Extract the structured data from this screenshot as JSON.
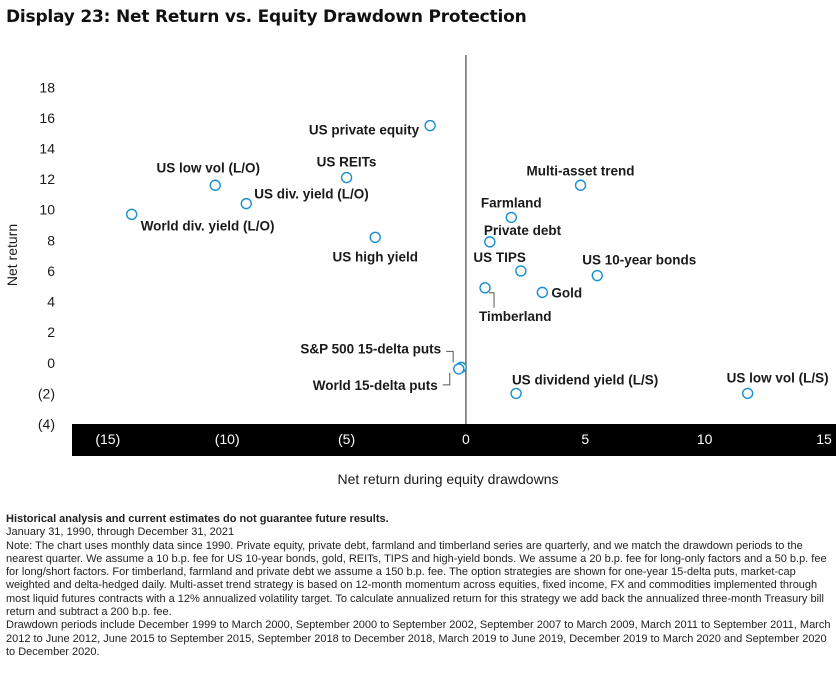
{
  "title": "Display 23: Net Return vs. Equity Drawdown Protection",
  "chart_data": {
    "type": "scatter",
    "xlabel": "Net return during equity drawdowns",
    "ylabel": "Net return",
    "xlim": [
      -16.5,
      15.5
    ],
    "ylim": [
      -4,
      19
    ],
    "xticks": [
      {
        "value": -15,
        "label": "(15)"
      },
      {
        "value": -10,
        "label": "(10)"
      },
      {
        "value": -5,
        "label": "(5)"
      },
      {
        "value": 0,
        "label": "0"
      },
      {
        "value": 5,
        "label": "5"
      },
      {
        "value": 10,
        "label": "10"
      },
      {
        "value": 15,
        "label": "15"
      }
    ],
    "yticks": [
      {
        "value": 18,
        "label": "18"
      },
      {
        "value": 16,
        "label": "16"
      },
      {
        "value": 14,
        "label": "14"
      },
      {
        "value": 12,
        "label": "12"
      },
      {
        "value": 10,
        "label": "10"
      },
      {
        "value": 8,
        "label": "8"
      },
      {
        "value": 6,
        "label": "6"
      },
      {
        "value": 4,
        "label": "4"
      },
      {
        "value": 2,
        "label": "2"
      },
      {
        "value": 0,
        "label": "0"
      },
      {
        "value": -2,
        "label": "(2)"
      },
      {
        "value": -4,
        "label": "(4)"
      }
    ],
    "points": [
      {
        "label": "US private equity",
        "x": -1.5,
        "y": 15.5
      },
      {
        "label": "US low vol (L/O)",
        "x": -10.5,
        "y": 11.6
      },
      {
        "label": "US REITs",
        "x": -5.0,
        "y": 12.1
      },
      {
        "label": "US div. yield (L/O)",
        "x": -9.2,
        "y": 10.4
      },
      {
        "label": "World div. yield (L/O)",
        "x": -14.0,
        "y": 9.7
      },
      {
        "label": "US high yield",
        "x": -3.8,
        "y": 8.2
      },
      {
        "label": "Multi-asset trend",
        "x": 4.8,
        "y": 11.6
      },
      {
        "label": "Farmland",
        "x": 1.9,
        "y": 9.5
      },
      {
        "label": "Private debt",
        "x": 1.0,
        "y": 7.9
      },
      {
        "label": "US TIPS",
        "x": 2.3,
        "y": 6.0
      },
      {
        "label": "US 10-year bonds",
        "x": 5.5,
        "y": 5.7
      },
      {
        "label": "Timberland",
        "x": 0.8,
        "y": 4.9
      },
      {
        "label": "Gold",
        "x": 3.2,
        "y": 4.6
      },
      {
        "label": "S&P 500 15-delta puts",
        "x": -0.2,
        "y": -0.3
      },
      {
        "label": "World 15-delta puts",
        "x": -0.3,
        "y": -0.4
      },
      {
        "label": "US dividend yield (L/S)",
        "x": 2.1,
        "y": -2.0
      },
      {
        "label": "US low vol (L/S)",
        "x": 11.8,
        "y": -2.0
      }
    ],
    "grid": false,
    "legend": "none"
  },
  "notes": {
    "disclaimer": "Historical analysis and current estimates do not guarantee future results.",
    "period": "January 31, 1990, through December 31, 2021",
    "note": "Note: The chart uses monthly data since 1990. Private equity, private debt, farmland and timberland series are quarterly, and we match the drawdown periods to the nearest quarter. We assume a 10 b.p. fee for US 10-year bonds, gold, REITs, TIPS and high-yield bonds. We assume a 20 b.p. fee for long-only factors and a 50 b.p. fee for long/short factors. For timberland, farmland and private debt we assume a 150 b.p. fee. The option strategies are shown for one-year 15-delta puts, market-cap weighted and delta-hedged daily. Multi-asset trend strategy is based on 12-month momentum across equities, fixed income, FX and commodities implemented through most liquid futures contracts with a 12% annualized volatility target. To calculate annualized return for this strategy we add back the annualized three-month Treasury bill return and subtract a 200 b.p. fee.",
    "drawdowns": "Drawdown periods include December 1999 to March 2000, September 2000 to September 2002, September 2007 to March 2009, March 2011 to September 2011, March 2012 to June 2012, June 2015 to September 2015, September 2018 to December 2018, March 2019 to June 2019, December 2019 to March 2020 and September 2020 to December 2020."
  },
  "colors": {
    "marker_stroke": "#1a8fd0",
    "axis_band": "#000000",
    "text": "#1a1a1a"
  }
}
